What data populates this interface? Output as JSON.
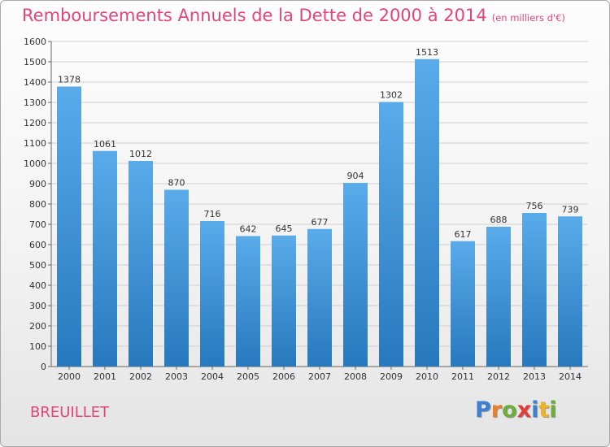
{
  "title": "Remboursements Annuels de la Dette de 2000 à 2014",
  "subtitle": "(en milliers d'€)",
  "location": "BREUILLET",
  "logo": {
    "letters": [
      "P",
      "r",
      "o",
      "x",
      "i",
      "t",
      "i"
    ],
    "colors": [
      "#3d7fd1",
      "#e8812a",
      "#6cae3c",
      "#e33b3b",
      "#3d7fd1",
      "#f0b323",
      "#6cae3c"
    ]
  },
  "colors": {
    "bar_top": "#5aabea",
    "bar_bottom": "#2878bd",
    "title": "#e0457b",
    "grid": "#d0d0d0"
  },
  "chart_data": {
    "type": "bar",
    "title": "Remboursements Annuels de la Dette de 2000 à 2014",
    "subtitle": "(en milliers d'€)",
    "xlabel": "",
    "ylabel": "",
    "categories": [
      "2000",
      "2001",
      "2002",
      "2003",
      "2004",
      "2005",
      "2006",
      "2007",
      "2008",
      "2009",
      "2010",
      "2011",
      "2012",
      "2013",
      "2014"
    ],
    "values": [
      1378,
      1061,
      1012,
      870,
      716,
      642,
      645,
      677,
      904,
      1302,
      1513,
      617,
      688,
      756,
      739
    ],
    "ylim": [
      0,
      1600
    ],
    "yticks": [
      0,
      100,
      200,
      300,
      400,
      500,
      600,
      700,
      800,
      900,
      1000,
      1100,
      1200,
      1300,
      1400,
      1500,
      1600
    ],
    "grid": true,
    "legend": "none"
  }
}
